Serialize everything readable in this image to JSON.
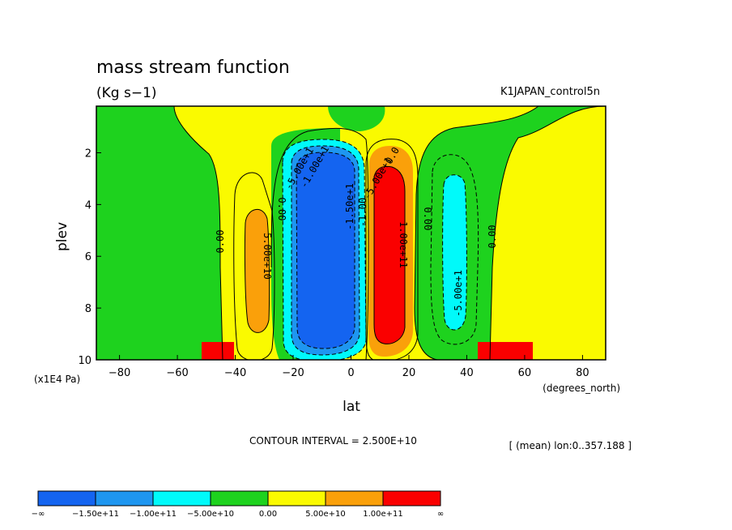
{
  "chart_data": {
    "type": "heatmap",
    "title": "mass stream function",
    "units": "(Kg s−1)",
    "run_label": "K1JAPAN_control5n",
    "xlabel": "lat",
    "x_units": "(degrees_north)",
    "ylabel": "plev",
    "y_units": "(x1E4 Pa)",
    "x_ticks": [
      "−80",
      "−60",
      "−40",
      "−20",
      "0",
      "20",
      "40",
      "60",
      "80"
    ],
    "y_ticks": [
      "2",
      "4",
      "6",
      "8",
      "10"
    ],
    "xlim": [
      -88,
      88
    ],
    "ylim": [
      10,
      0.2
    ],
    "y_inverted": true,
    "contour_interval_text": "CONTOUR INTERVAL = 2.500E+10",
    "mean_text": "[ (mean) lon:0..357.188 ]",
    "contour_labels": [
      "0.00",
      "5.00e+10",
      "0.00",
      "-5.00e+1",
      "-1.00e+1",
      "-1.50e+1",
      "-1.00",
      "-5.00e+1",
      "0.0",
      "1.00e+11",
      "0.00",
      "-5.00e+1",
      "0.00"
    ],
    "colorbar": {
      "colors": [
        "#1464f0",
        "#1e96f0",
        "#00fafa",
        "#1ed21e",
        "#fafa00",
        "#faa00a",
        "#fa0000"
      ],
      "labels": [
        "−∞",
        "−1.50e+11",
        "−1.00e+11",
        "−5.00e+10",
        "0.00",
        "5.00e+10",
        "1.00e+11",
        "∞"
      ]
    },
    "cells": [
      {
        "lat": -52,
        "plev": 1,
        "value": 0
      },
      {
        "lat": -32,
        "plev": 6,
        "value": 75000000000.0
      },
      {
        "lat": -5,
        "plev": 5,
        "value": -170000000000.0
      },
      {
        "lat": 15,
        "plev": 5,
        "value": 160000000000.0
      },
      {
        "lat": 40,
        "plev": 6,
        "value": -60000000000.0
      },
      {
        "lat": 75,
        "plev": 5,
        "value": 10000000000.0
      }
    ]
  }
}
